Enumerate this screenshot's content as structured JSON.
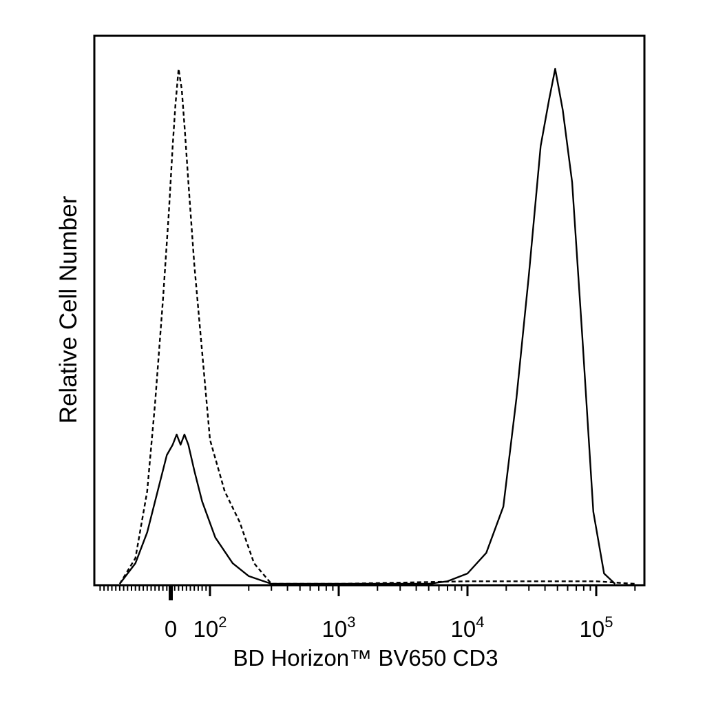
{
  "chart_data": {
    "type": "line",
    "title": "",
    "xlabel": "BD Horizon™ BV650 CD3",
    "ylabel": "Relative Cell Number",
    "x_scale": "biexponential (linear near 0, log above)",
    "x_tick_labels": [
      {
        "value": 0,
        "base": "0",
        "exp": ""
      },
      {
        "value": 100,
        "base": "10",
        "exp": "2"
      },
      {
        "value": 1000,
        "base": "10",
        "exp": "3"
      },
      {
        "value": 10000,
        "base": "10",
        "exp": "4"
      },
      {
        "value": 100000,
        "base": "10",
        "exp": "5"
      }
    ],
    "xlim": [
      -200,
      250000
    ],
    "ylim": [
      0,
      1
    ],
    "grid": false,
    "legend": "none",
    "series": [
      {
        "style": "dashed",
        "points": [
          [
            -130,
            0.0
          ],
          [
            -90,
            0.05
          ],
          [
            -60,
            0.18
          ],
          [
            -40,
            0.35
          ],
          [
            -20,
            0.55
          ],
          [
            -5,
            0.72
          ],
          [
            5,
            0.85
          ],
          [
            12,
            0.93
          ],
          [
            20,
            1.0
          ],
          [
            28,
            0.96
          ],
          [
            36,
            0.88
          ],
          [
            45,
            0.78
          ],
          [
            60,
            0.62
          ],
          [
            80,
            0.45
          ],
          [
            100,
            0.28
          ],
          [
            130,
            0.18
          ],
          [
            170,
            0.12
          ],
          [
            220,
            0.04
          ],
          [
            300,
            0.0
          ],
          [
            1000,
            0.0
          ],
          [
            10000,
            0.005
          ],
          [
            100000,
            0.005
          ],
          [
            200000,
            0.0
          ]
        ]
      },
      {
        "style": "solid",
        "points": [
          [
            -130,
            0.0
          ],
          [
            -90,
            0.04
          ],
          [
            -60,
            0.1
          ],
          [
            -30,
            0.19
          ],
          [
            -10,
            0.25
          ],
          [
            5,
            0.27
          ],
          [
            15,
            0.29
          ],
          [
            25,
            0.27
          ],
          [
            35,
            0.29
          ],
          [
            45,
            0.27
          ],
          [
            60,
            0.22
          ],
          [
            80,
            0.16
          ],
          [
            110,
            0.09
          ],
          [
            150,
            0.04
          ],
          [
            200,
            0.015
          ],
          [
            300,
            0.0
          ],
          [
            5000,
            0.0
          ],
          [
            7000,
            0.005
          ],
          [
            10000,
            0.02
          ],
          [
            14000,
            0.06
          ],
          [
            19000,
            0.15
          ],
          [
            24000,
            0.36
          ],
          [
            30000,
            0.6
          ],
          [
            37000,
            0.85
          ],
          [
            43000,
            0.94
          ],
          [
            48000,
            1.0
          ],
          [
            55000,
            0.92
          ],
          [
            65000,
            0.78
          ],
          [
            78000,
            0.48
          ],
          [
            95000,
            0.14
          ],
          [
            115000,
            0.02
          ],
          [
            140000,
            0.0
          ]
        ]
      }
    ]
  }
}
